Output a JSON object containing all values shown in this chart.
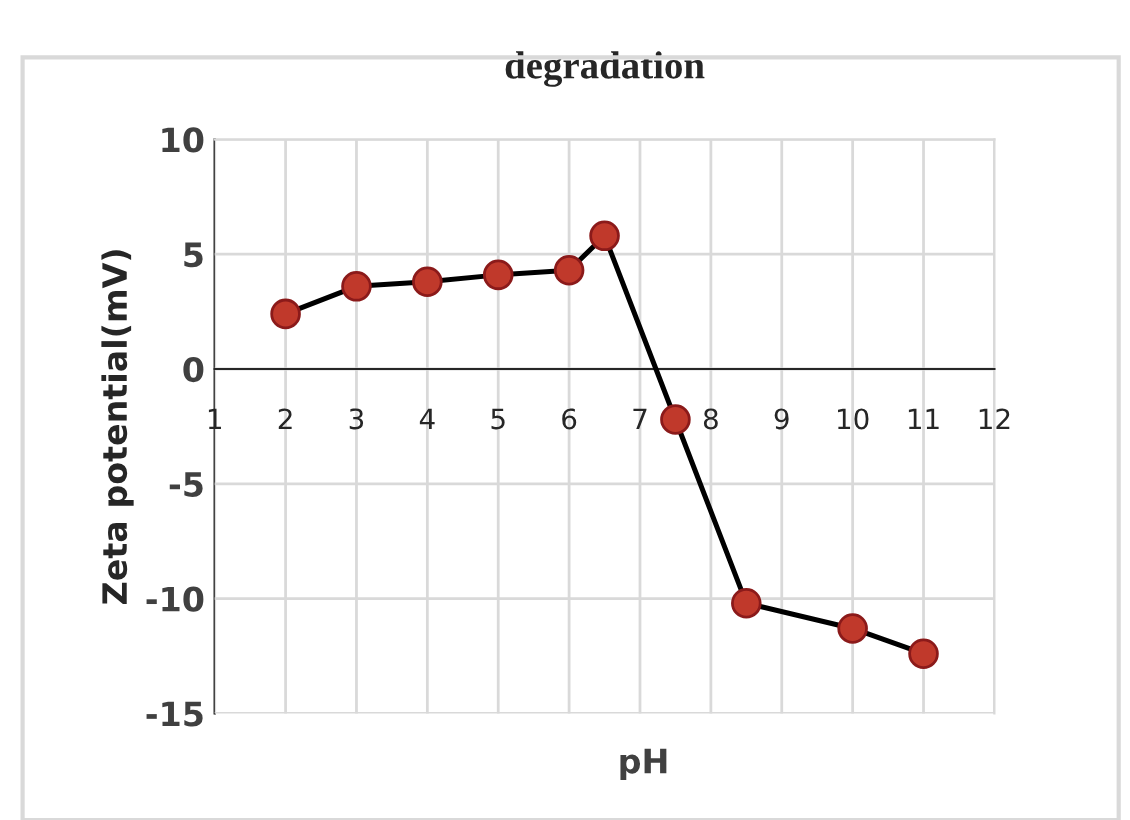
{
  "chart_data": {
    "type": "line",
    "title": "degradation",
    "xlabel": "pH",
    "ylabel": "Zeta potential(mV)",
    "x": [
      2,
      3,
      4,
      5,
      6,
      6.5,
      7.5,
      8.5,
      10,
      11
    ],
    "series": [
      {
        "color": "#000000",
        "values": [
          2.4,
          3.6,
          3.8,
          4.1,
          4.3,
          5.8,
          -2.2,
          -10.2,
          -11.3,
          -12.4
        ]
      }
    ],
    "xlim": [
      1,
      12
    ],
    "xticks": [
      1,
      2,
      3,
      4,
      5,
      6,
      7,
      8,
      9,
      10,
      11,
      12
    ],
    "ylim": [
      -15,
      10
    ],
    "yticks": [
      -15,
      -10,
      -5,
      0,
      5,
      10
    ],
    "grid": true,
    "marker": "circle",
    "line_style": "solid",
    "legend": false
  }
}
